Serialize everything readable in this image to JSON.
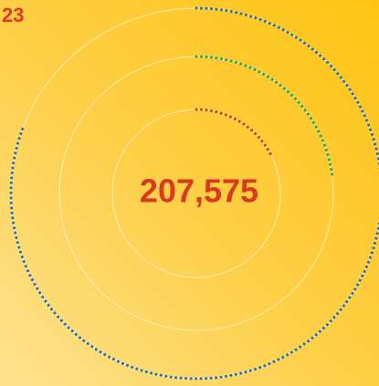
{
  "badge": "23",
  "total": "207,575",
  "chart_data": {
    "type": "radial",
    "ylim": [
      0,
      100
    ],
    "series": [
      {
        "color": "#1c6cc2",
        "values": [
          81
        ]
      },
      {
        "color": "#17a76a",
        "values": [
          23
        ]
      },
      {
        "color": "#c4372a",
        "values": [
          18
        ]
      }
    ]
  }
}
